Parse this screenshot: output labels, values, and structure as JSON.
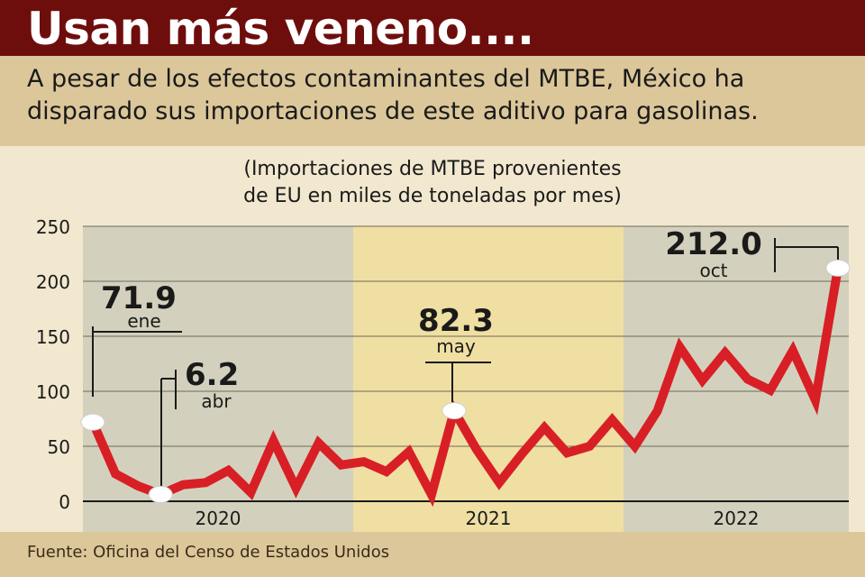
{
  "header": {
    "title": "Usan más veneno....",
    "subtitle": "A pesar de los efectos contaminantes del MTBE, México ha disparado sus importaciones de este aditivo para gasolinas."
  },
  "footer": {
    "source": "Fuente: Oficina del Censo de Estados Unidos"
  },
  "colors": {
    "title_bg": "#6e0e0c",
    "band_bg": "#dcc79a",
    "panel_bg": "#f1e8cf",
    "line": "#d81f26",
    "year_band_2020": "#d3d1bd",
    "year_band_2021": "#efdfa3",
    "year_band_2022": "#d3d1bd"
  },
  "chart_data": {
    "type": "line",
    "title": "(Importaciones de MTBE provenientes de EU en miles de toneladas por mes)",
    "title_lines": [
      "(Importaciones de MTBE provenientes",
      "de EU en miles de toneladas por mes)"
    ],
    "xlabel": "",
    "ylabel": "",
    "ylim": [
      0,
      250
    ],
    "yticks": [
      0,
      50,
      100,
      150,
      200,
      250
    ],
    "grid": true,
    "years": [
      "2020",
      "2021",
      "2022"
    ],
    "series": [
      {
        "name": "Importaciones de MTBE",
        "values": [
          71.9,
          25,
          14,
          6.2,
          15,
          17,
          28,
          8,
          55,
          12,
          53,
          33,
          36,
          27,
          45,
          6,
          82.3,
          47,
          17,
          43,
          67,
          44,
          50,
          74,
          50,
          82,
          140,
          110,
          135,
          111,
          101,
          137,
          92,
          212.0
        ]
      }
    ],
    "annotations": [
      {
        "index": 0,
        "value": "71.9",
        "month": "ene"
      },
      {
        "index": 3,
        "value": "6.2",
        "month": "abr"
      },
      {
        "index": 16,
        "value": "82.3",
        "month": "may"
      },
      {
        "index": 33,
        "value": "212.0",
        "month": "oct"
      }
    ]
  }
}
